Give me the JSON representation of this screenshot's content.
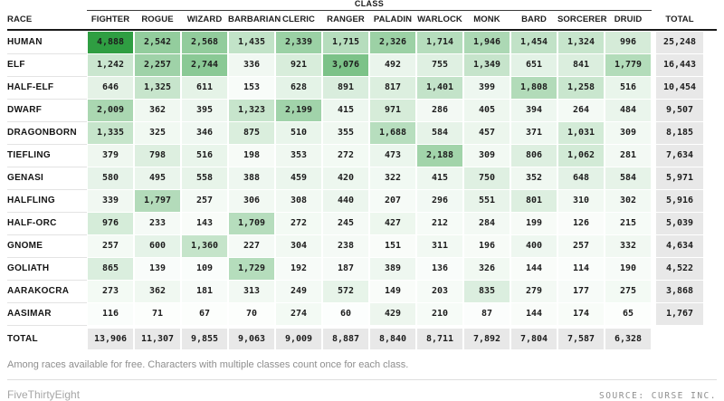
{
  "page": {
    "footnote": "Among races available for free. Characters with multiple classes count once for each class.",
    "credit_left": "FiveThirtyEight",
    "credit_right": "SOURCE: CURSE INC."
  },
  "chart_data": {
    "type": "heatmap",
    "col_group_label": "CLASS",
    "row_header_label": "RACE",
    "total_column_label": "TOTAL",
    "total_row_label": "TOTAL",
    "columns": [
      "FIGHTER",
      "ROGUE",
      "WIZARD",
      "BARBARIAN",
      "CLERIC",
      "RANGER",
      "PALADIN",
      "WARLOCK",
      "MONK",
      "BARD",
      "SORCERER",
      "DRUID"
    ],
    "rows": [
      {
        "race": "HUMAN",
        "values": [
          4888,
          2542,
          2568,
          1435,
          2339,
          1715,
          2326,
          1714,
          1946,
          1454,
          1324,
          996
        ],
        "total": 25248
      },
      {
        "race": "ELF",
        "values": [
          1242,
          2257,
          2744,
          336,
          921,
          3076,
          492,
          755,
          1349,
          651,
          841,
          1779
        ],
        "total": 16443
      },
      {
        "race": "HALF-ELF",
        "values": [
          646,
          1325,
          611,
          153,
          628,
          891,
          817,
          1401,
          399,
          1808,
          1258,
          516
        ],
        "total": 10454
      },
      {
        "race": "DWARF",
        "values": [
          2009,
          362,
          395,
          1323,
          2199,
          415,
          971,
          286,
          405,
          394,
          264,
          484
        ],
        "total": 9507
      },
      {
        "race": "DRAGONBORN",
        "values": [
          1335,
          325,
          346,
          875,
          510,
          355,
          1688,
          584,
          457,
          371,
          1031,
          309
        ],
        "total": 8185
      },
      {
        "race": "TIEFLING",
        "values": [
          379,
          798,
          516,
          198,
          353,
          272,
          473,
          2188,
          309,
          806,
          1062,
          281
        ],
        "total": 7634
      },
      {
        "race": "GENASI",
        "values": [
          580,
          495,
          558,
          388,
          459,
          420,
          322,
          415,
          750,
          352,
          648,
          584
        ],
        "total": 5971
      },
      {
        "race": "HALFLING",
        "values": [
          339,
          1797,
          257,
          306,
          308,
          440,
          207,
          296,
          551,
          801,
          310,
          302
        ],
        "total": 5916
      },
      {
        "race": "HALF-ORC",
        "values": [
          976,
          233,
          143,
          1709,
          272,
          245,
          427,
          212,
          284,
          199,
          126,
          215
        ],
        "total": 5039
      },
      {
        "race": "GNOME",
        "values": [
          257,
          600,
          1360,
          227,
          304,
          238,
          151,
          311,
          196,
          400,
          257,
          332
        ],
        "total": 4634
      },
      {
        "race": "GOLIATH",
        "values": [
          865,
          139,
          109,
          1729,
          192,
          187,
          389,
          136,
          326,
          144,
          114,
          190
        ],
        "total": 4522
      },
      {
        "race": "AARAKOCRA",
        "values": [
          273,
          362,
          181,
          313,
          249,
          572,
          149,
          203,
          835,
          279,
          177,
          275
        ],
        "total": 3868
      },
      {
        "race": "AASIMAR",
        "values": [
          116,
          71,
          67,
          70,
          274,
          60,
          429,
          210,
          87,
          144,
          174,
          65
        ],
        "total": 1767
      }
    ],
    "column_totals": [
      13906,
      11307,
      9855,
      9063,
      9009,
      8887,
      8840,
      8711,
      7892,
      7804,
      7587,
      6328
    ],
    "color_scale": {
      "zero_color": "#ffffff",
      "max_color": "#2f9e42",
      "max_value": 4888
    },
    "total_bg_color": "#e8e8e8",
    "legend_position": "none",
    "grid": false
  }
}
